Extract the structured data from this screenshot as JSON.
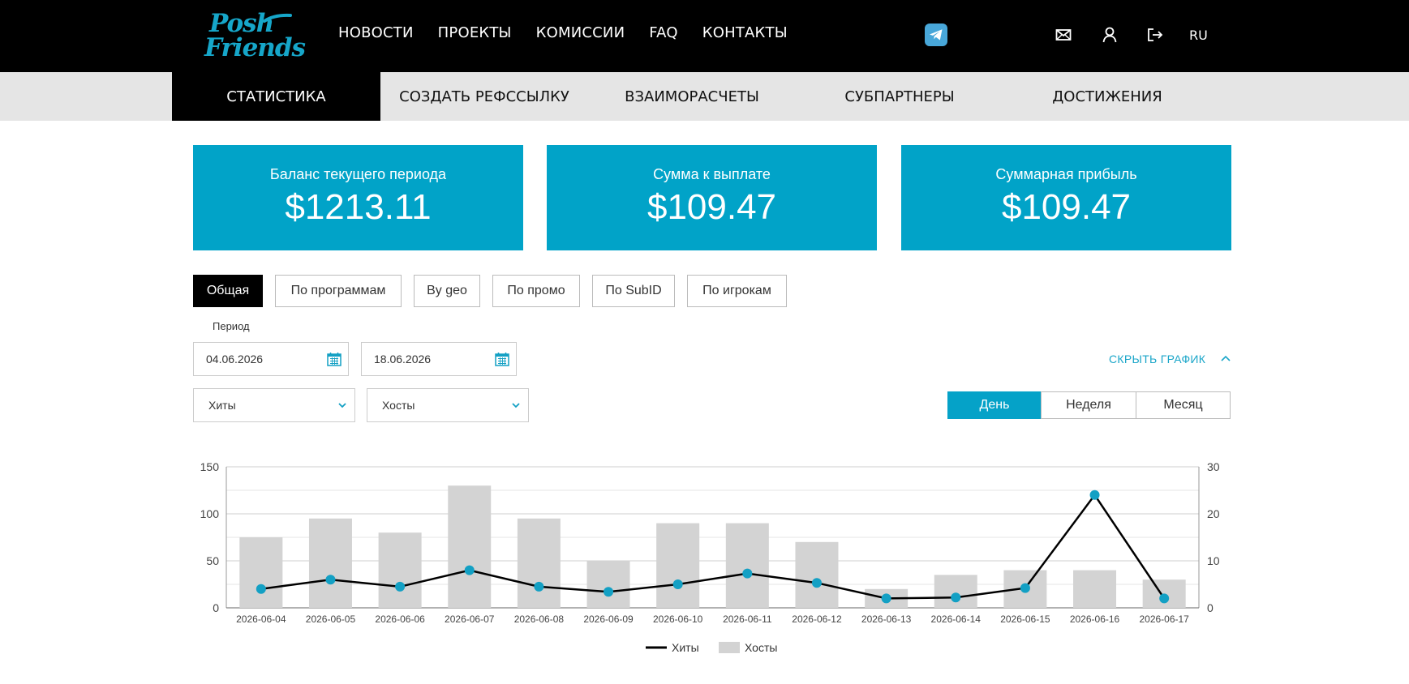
{
  "header": {
    "logo_line1": "Posh",
    "logo_line2": "Friends",
    "nav": [
      "НОВОСТИ",
      "ПРОЕКТЫ",
      "КОМИССИИ",
      "FAQ",
      "КОНТАКТЫ"
    ],
    "language": "RU",
    "icons": [
      "telegram-icon",
      "mail-icon",
      "user-icon",
      "logout-icon"
    ]
  },
  "subnav": {
    "tabs": [
      "СТАТИСТИКА",
      "СОЗДАТЬ РЕФССЫЛКУ",
      "ВЗАИМОРАСЧЕТЫ",
      "СУБПАРТНЕРЫ",
      "ДОСТИЖЕНИЯ"
    ],
    "active": "СТАТИСТИКА"
  },
  "cards": [
    {
      "label": "Баланс текущего периода",
      "value": "$1213.11"
    },
    {
      "label": "Сумма к выплате",
      "value": "$109.47"
    },
    {
      "label": "Суммарная прибыль",
      "value": "$109.47"
    }
  ],
  "filter_tabs": [
    "Общая",
    "По программам",
    "By geo",
    "По промо",
    "По SubID",
    "По игрокам"
  ],
  "filter_active": "Общая",
  "period": {
    "label": "Период",
    "from": "04.06.2026",
    "to": "18.06.2026"
  },
  "hide_chart_label": "СКРЫТЬ ГРАФИК",
  "selects": {
    "left": "Хиты",
    "right": "Хосты"
  },
  "granularity": {
    "options": [
      "День",
      "Неделя",
      "Месяц"
    ],
    "active": "День"
  },
  "colors": {
    "accent": "#01a3c8",
    "bar": "#d3d3d3",
    "line": "#000000",
    "point": "#13a0c4"
  },
  "chart_data": {
    "type": "bar",
    "categories": [
      "2026-06-04",
      "2026-06-05",
      "2026-06-06",
      "2026-06-07",
      "2026-06-08",
      "2026-06-09",
      "2026-06-10",
      "2026-06-11",
      "2026-06-12",
      "2026-06-13",
      "2026-06-14",
      "2026-06-15",
      "2026-06-16",
      "2026-06-17"
    ],
    "series": [
      {
        "name": "Хиты",
        "type": "line",
        "axis": "right",
        "values": [
          4,
          6,
          4.5,
          8,
          4.5,
          3.4,
          5,
          7.3,
          5.3,
          2,
          2.2,
          4.2,
          24,
          2
        ]
      },
      {
        "name": "Хосты",
        "type": "bar",
        "axis": "left",
        "values": [
          75,
          95,
          80,
          130,
          95,
          50,
          90,
          90,
          70,
          20,
          35,
          40,
          40,
          30
        ]
      }
    ],
    "y_left": {
      "range": [
        0,
        150
      ],
      "ticks": [
        "0",
        "50",
        "100",
        "150"
      ]
    },
    "y_right": {
      "range": [
        0,
        30
      ],
      "ticks": [
        "0",
        "10",
        "20",
        "30"
      ]
    },
    "grid": true,
    "legend": "bottom-center"
  }
}
